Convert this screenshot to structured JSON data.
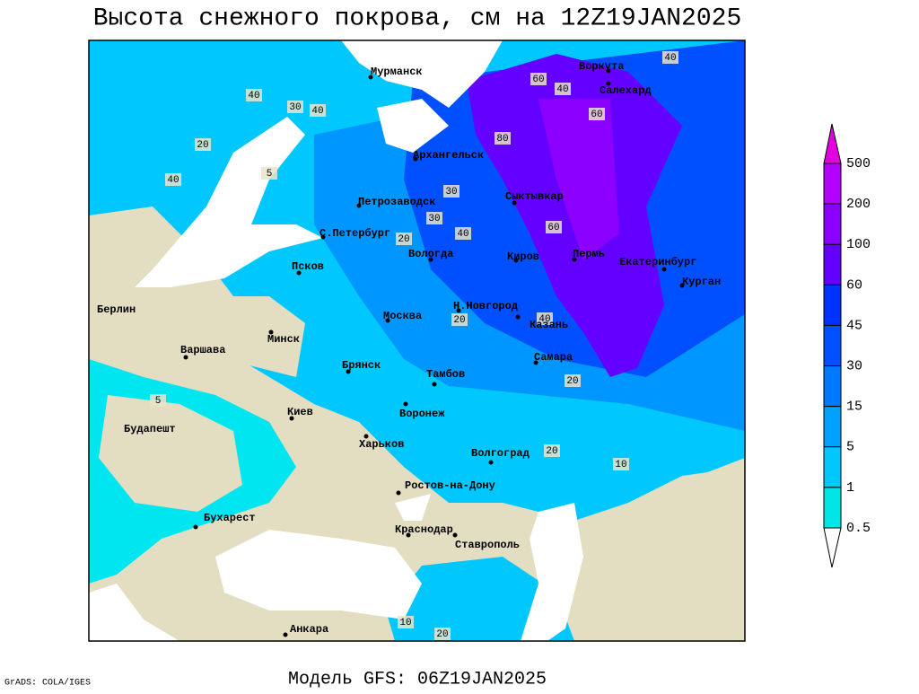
{
  "header": {
    "title": "Высота снежного покрова, см на 12Z19JAN2025"
  },
  "map": {
    "cities": [
      "Мурманск",
      "Воркута",
      "Салехард",
      "Архангельск",
      "Петрозаводск",
      "Сыктывкар",
      "С.Петербург",
      "Вологда",
      "Киров",
      "Пермь",
      "Екатеринбург",
      "Псков",
      "Курган",
      "Берлин",
      "Н.Новгород",
      "Казань",
      "Москва",
      "Минск",
      "Варшава",
      "Самара",
      "Брянск",
      "Тамбов",
      "Киев",
      "Воронеж",
      "Будапешт",
      "Харьков",
      "Волгоград",
      "Ростов-на-Дону",
      "Бухарест",
      "Краснодар",
      "Ставрополь",
      "Анкара"
    ],
    "contour_labels": [
      40,
      30,
      40,
      20,
      60,
      40,
      80,
      60,
      40,
      30,
      40,
      30,
      20,
      5,
      40,
      60,
      20,
      40,
      20,
      10,
      5,
      20,
      10,
      20
    ]
  },
  "legend": {
    "levels": [
      500,
      200,
      100,
      60,
      45,
      30,
      15,
      5,
      1,
      0.5
    ]
  },
  "footer": {
    "credit": "GrADS: COLA/IGES",
    "model": "Модель GFS: 06Z19JAN2025"
  }
}
